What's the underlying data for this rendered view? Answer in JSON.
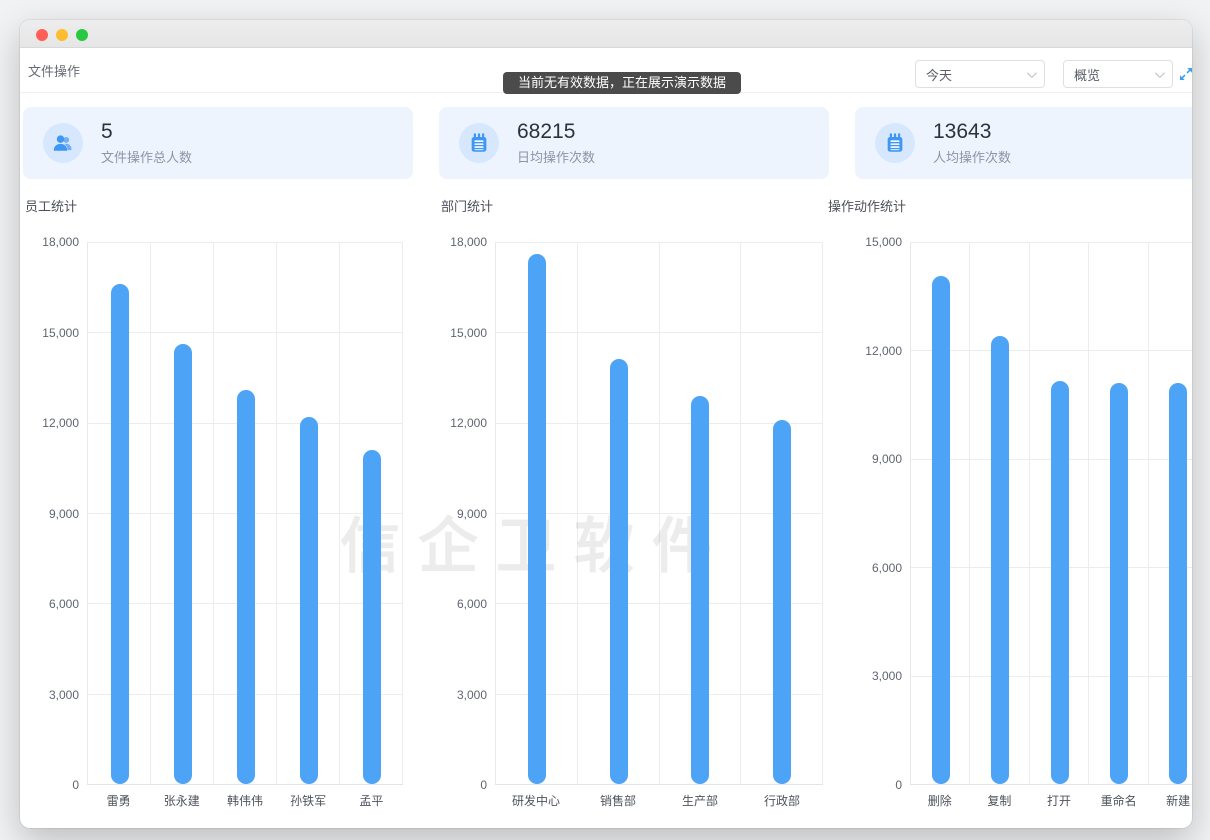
{
  "toolbar": {
    "breadcrumb": "文件操作",
    "time_filter": "今天",
    "view_filter": "概览"
  },
  "toast": {
    "message": "当前无有效数据，正在展示演示数据"
  },
  "stat_cards": [
    {
      "icon": "users-icon",
      "value": "5",
      "label": "文件操作总人数"
    },
    {
      "icon": "notepad-icon",
      "value": "68215",
      "label": "日均操作次数"
    },
    {
      "icon": "notepad-icon",
      "value": "13643",
      "label": "人均操作次数"
    }
  ],
  "watermark": "信企卫软件",
  "colors": {
    "bar": "#4da3f5",
    "card_bg": "#edf4fe",
    "icon_circle_bg": "#d7e7fd",
    "icon_fg": "#3f97f4",
    "toast_bg": "#4b4b4b",
    "fullscreen_icon": "#3d9df6",
    "traffic_red": "#ff5f57",
    "traffic_yellow": "#febc2e",
    "traffic_green": "#28c840"
  },
  "chart_data": [
    {
      "type": "bar",
      "title": "员工统计",
      "categories": [
        "雷勇",
        "张永建",
        "韩伟伟",
        "孙铁军",
        "孟平"
      ],
      "values": [
        16600,
        14600,
        13100,
        12200,
        11100
      ],
      "ylim": [
        0,
        18000
      ],
      "ytick_step": 3000,
      "yticks": [
        0,
        3000,
        6000,
        9000,
        12000,
        15000,
        18000
      ],
      "grid": "on",
      "legend": "none"
    },
    {
      "type": "bar",
      "title": "部门统计",
      "categories": [
        "研发中心",
        "销售部",
        "生产部",
        "行政部"
      ],
      "values": [
        17600,
        14100,
        12900,
        12100
      ],
      "ylim": [
        0,
        18000
      ],
      "ytick_step": 3000,
      "yticks": [
        0,
        3000,
        6000,
        9000,
        12000,
        15000,
        18000
      ],
      "grid": "on",
      "legend": "none"
    },
    {
      "type": "bar",
      "title": "操作动作统计",
      "categories": [
        "删除",
        "复制",
        "打开",
        "重命名",
        "新建"
      ],
      "values": [
        14050,
        12400,
        11150,
        11100,
        11100
      ],
      "ylim": [
        0,
        15000
      ],
      "ytick_step": 3000,
      "yticks": [
        0,
        3000,
        6000,
        9000,
        12000,
        15000
      ],
      "grid": "on",
      "legend": "none"
    }
  ]
}
